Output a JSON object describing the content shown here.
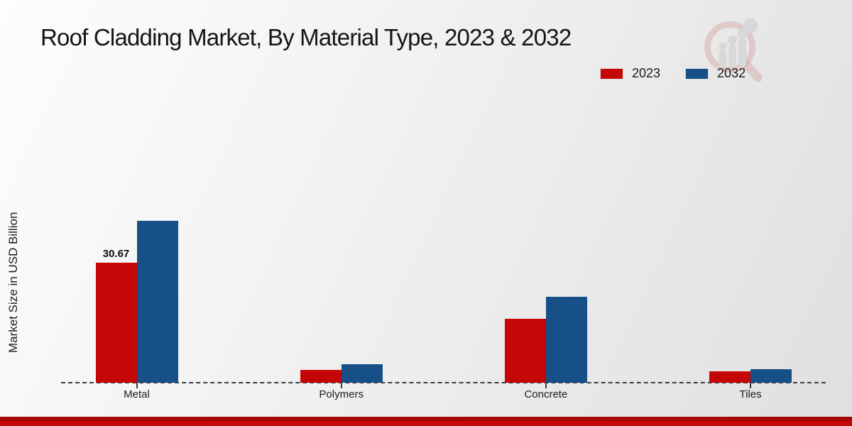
{
  "title": "Roof Cladding Market, By Material Type, 2023 & 2032",
  "y_axis_label": "Market Size in USD Billion",
  "legend": {
    "position": "top-right",
    "items": [
      {
        "label": "2023",
        "color": "#c50606"
      },
      {
        "label": "2032",
        "color": "#174f87"
      }
    ]
  },
  "watermark_icon": "market-research-magnifier-logo",
  "colors": {
    "series_2023": "#c50606",
    "series_2032": "#174f87",
    "footer_strip": "#b30404",
    "baseline": "#3c3c3c",
    "background_light": "#fdfdfd",
    "background_dark": "#e0e0e0"
  },
  "chart_data": {
    "type": "bar",
    "title": "Roof Cladding Market, By Material Type, 2023 & 2032",
    "ylabel": "Market Size in USD Billion",
    "xlabel": "",
    "categories": [
      "Metal",
      "Polymers",
      "Concrete",
      "Tiles"
    ],
    "series": [
      {
        "name": "2023",
        "color": "#c50606",
        "values": [
          30.67,
          3.3,
          16.3,
          2.9
        ]
      },
      {
        "name": "2032",
        "color": "#174f87",
        "values": [
          41.4,
          4.7,
          22.0,
          3.4
        ]
      }
    ],
    "bar_labels": [
      {
        "category": "Metal",
        "series": "2023",
        "text": "30.67"
      }
    ],
    "legend_position": "top-right",
    "grid": false,
    "baseline_style": "dashed",
    "ylim": [
      0,
      45
    ]
  }
}
